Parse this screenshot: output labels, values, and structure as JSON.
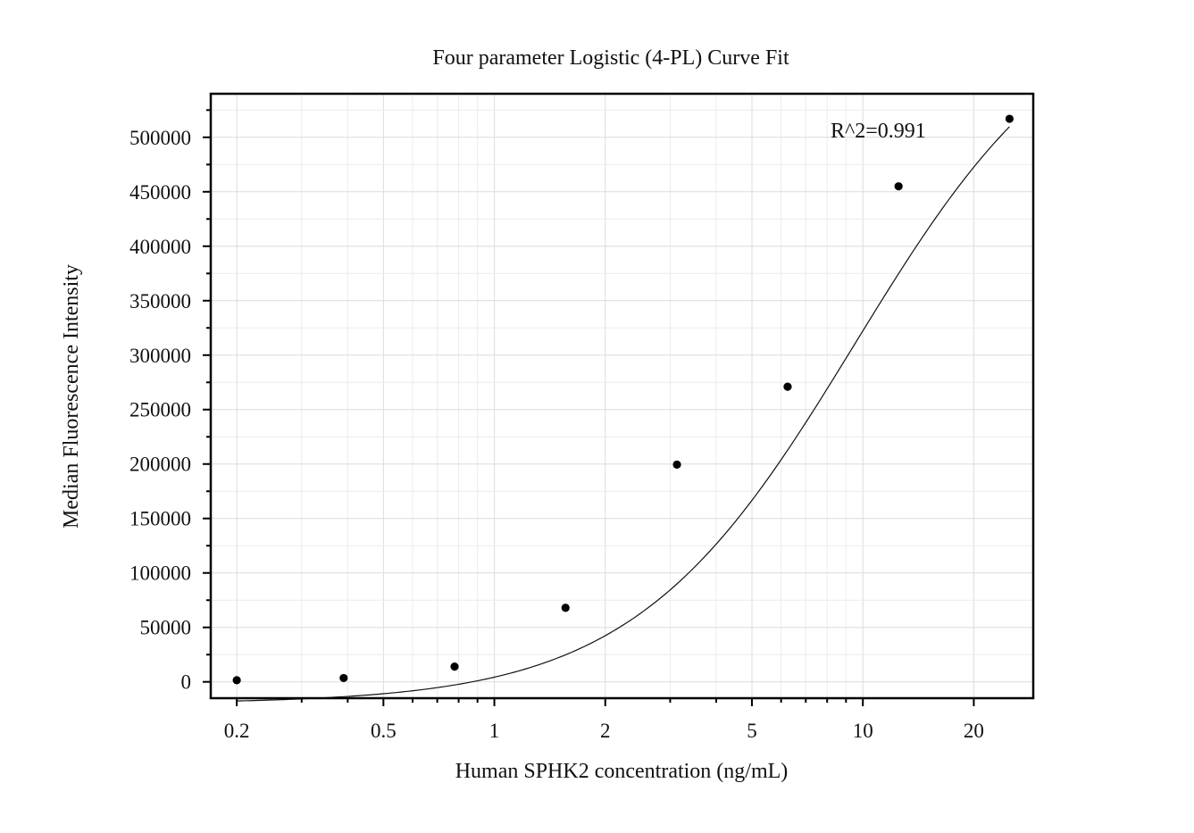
{
  "chart_data": {
    "type": "scatter",
    "title": "Four parameter Logistic (4-PL) Curve Fit",
    "xlabel": "Human SPHK2 concentration (ng/mL)",
    "ylabel": "Median Fluorescence Intensity",
    "x_scale": "log",
    "xlim": [
      0.17,
      29
    ],
    "ylim": [
      -15000,
      540000
    ],
    "x_ticks": [
      0.2,
      0.5,
      1,
      2,
      5,
      10,
      20
    ],
    "x_tick_labels": [
      "0.2",
      "0.5",
      "1",
      "2",
      "5",
      "10",
      "20"
    ],
    "y_ticks": [
      0,
      50000,
      100000,
      150000,
      200000,
      250000,
      300000,
      350000,
      400000,
      450000,
      500000
    ],
    "y_tick_labels": [
      "0",
      "50000",
      "100000",
      "150000",
      "200000",
      "250000",
      "300000",
      "350000",
      "400000",
      "450000",
      "500000"
    ],
    "grid": true,
    "annotation": "R^2=0.991",
    "series": [
      {
        "type": "scatter",
        "x": [
          0.2,
          0.39,
          0.78,
          1.56,
          3.13,
          6.25,
          12.5,
          25
        ],
        "y": [
          1500,
          3500,
          14000,
          68000,
          199500,
          271000,
          455000,
          517000
        ]
      },
      {
        "type": "line",
        "fit": "4PL",
        "params": {
          "a": -20000,
          "b": 1.45,
          "c": 9.5,
          "d": 640000
        }
      }
    ]
  }
}
